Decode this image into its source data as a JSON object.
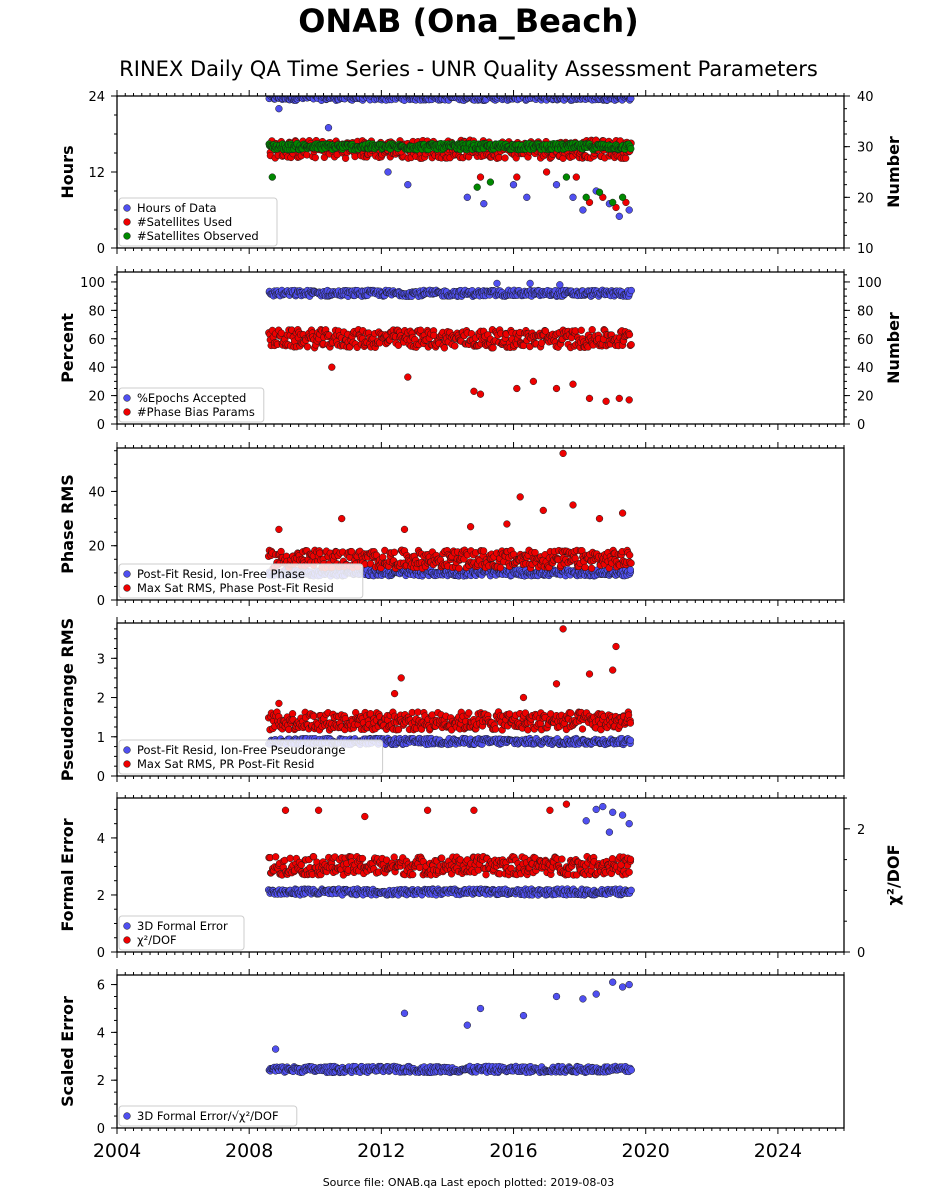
{
  "title": "ONAB (Ona_Beach)",
  "subtitle": "RINEX Daily QA Time Series - UNR Quality Assessment Parameters",
  "footer": "Source file: ONAB.qa Last epoch plotted: 2019-08-03",
  "colors": {
    "blue": "#5050f0",
    "red": "#ee0000",
    "green": "#008800",
    "edge": "#1a1a1a"
  },
  "x_axis": {
    "range": [
      2004,
      2026
    ],
    "ticks": [
      "2004",
      "2008",
      "2012",
      "2016",
      "2020",
      "2024"
    ],
    "tick_values": [
      2004,
      2008,
      2012,
      2016,
      2020,
      2024
    ]
  },
  "chart_data": [
    {
      "type": "scatter",
      "ylabel": "Hours",
      "y2label": "Number",
      "ylim": [
        0,
        24
      ],
      "yticks": [
        0,
        12,
        24
      ],
      "y2lim": [
        10,
        40
      ],
      "y2ticks": [
        10,
        20,
        30,
        40
      ],
      "legend_position": "lower-left",
      "series": [
        {
          "name": "Hours of Data",
          "axis": "left",
          "color": "blue",
          "baseline": 23.8,
          "low": 5,
          "points": [
            [
              2008.9,
              22
            ],
            [
              2010.4,
              19
            ],
            [
              2012.2,
              12
            ],
            [
              2012.8,
              10
            ],
            [
              2014.6,
              8
            ],
            [
              2015.1,
              7
            ],
            [
              2016.0,
              10
            ],
            [
              2016.4,
              8
            ],
            [
              2017.3,
              10
            ],
            [
              2017.8,
              8
            ],
            [
              2018.1,
              6
            ],
            [
              2018.5,
              9
            ],
            [
              2018.9,
              7
            ],
            [
              2019.2,
              5
            ],
            [
              2019.5,
              6
            ]
          ]
        },
        {
          "name": "#Satellites Used",
          "axis": "right",
          "color": "red",
          "baseline": 29.5,
          "low": 17,
          "points": [
            [
              2012.6,
              29
            ],
            [
              2015.0,
              24
            ],
            [
              2016.1,
              24
            ],
            [
              2017.0,
              25
            ],
            [
              2017.9,
              24
            ],
            [
              2018.3,
              19
            ],
            [
              2018.7,
              20
            ],
            [
              2019.1,
              18
            ],
            [
              2019.4,
              19
            ]
          ]
        },
        {
          "name": "#Satellites Observed",
          "axis": "right",
          "color": "green",
          "baseline": 30,
          "low": 19,
          "points": [
            [
              2008.7,
              24
            ],
            [
              2014.9,
              22
            ],
            [
              2015.3,
              23
            ],
            [
              2017.6,
              24
            ],
            [
              2018.2,
              20
            ],
            [
              2018.6,
              21
            ],
            [
              2019.0,
              19
            ],
            [
              2019.3,
              20
            ]
          ]
        }
      ]
    },
    {
      "type": "scatter",
      "ylabel": "Percent",
      "y2label": "Number",
      "ylim": [
        0,
        107
      ],
      "yticks": [
        0,
        20,
        40,
        60,
        80,
        100
      ],
      "y2lim": [
        0,
        107
      ],
      "y2ticks": [
        0,
        20,
        40,
        60,
        80,
        100
      ],
      "legend_position": "lower-left",
      "series": [
        {
          "name": "%Epochs Accepted",
          "axis": "left",
          "color": "blue",
          "baseline": 92,
          "low": 87,
          "points": [
            [
              2015.5,
              99
            ],
            [
              2016.5,
              99
            ],
            [
              2017.4,
              98
            ]
          ]
        },
        {
          "name": "#Phase Bias Params",
          "axis": "right",
          "color": "red",
          "baseline": 60,
          "low": 16,
          "points": [
            [
              2010.5,
              40
            ],
            [
              2012.8,
              33
            ],
            [
              2014.8,
              23
            ],
            [
              2015.0,
              21
            ],
            [
              2016.1,
              25
            ],
            [
              2016.6,
              30
            ],
            [
              2017.3,
              25
            ],
            [
              2017.8,
              28
            ],
            [
              2018.3,
              18
            ],
            [
              2018.8,
              16
            ],
            [
              2019.2,
              18
            ],
            [
              2019.5,
              17
            ]
          ]
        }
      ]
    },
    {
      "type": "scatter",
      "ylabel": "Phase RMS",
      "ylim": [
        0,
        56
      ],
      "yticks": [
        0,
        20,
        40
      ],
      "legend_position": "lower-left",
      "series": [
        {
          "name": "Post-Fit Resid, Ion-Free Phase",
          "axis": "left",
          "color": "blue",
          "baseline": 10,
          "low": 8,
          "points": []
        },
        {
          "name": "Max Sat RMS, Phase Post-Fit Resid",
          "axis": "left",
          "color": "red",
          "baseline": 15,
          "low": 10,
          "points": [
            [
              2008.9,
              26
            ],
            [
              2010.8,
              30
            ],
            [
              2012.7,
              26
            ],
            [
              2014.7,
              27
            ],
            [
              2015.8,
              28
            ],
            [
              2016.2,
              38
            ],
            [
              2016.9,
              33
            ],
            [
              2017.5,
              54
            ],
            [
              2017.8,
              35
            ],
            [
              2018.6,
              30
            ],
            [
              2019.3,
              32
            ]
          ]
        }
      ]
    },
    {
      "type": "scatter",
      "ylabel": "Pseudorange RMS",
      "ylim": [
        0,
        3.9
      ],
      "yticks": [
        0,
        1,
        2,
        3
      ],
      "legend_position": "lower-left",
      "series": [
        {
          "name": "Post-Fit Resid, Ion-Free Pseudorange",
          "axis": "left",
          "color": "blue",
          "baseline": 0.88,
          "low": 0.55,
          "points": []
        },
        {
          "name": "Max Sat RMS, PR Post-Fit Resid",
          "axis": "left",
          "color": "red",
          "baseline": 1.4,
          "low": 0.7,
          "points": [
            [
              2008.9,
              1.85
            ],
            [
              2012.4,
              2.1
            ],
            [
              2012.6,
              2.5
            ],
            [
              2016.3,
              2.0
            ],
            [
              2017.5,
              3.75
            ],
            [
              2017.3,
              2.35
            ],
            [
              2018.3,
              2.6
            ],
            [
              2019.1,
              3.3
            ],
            [
              2019.0,
              2.7
            ]
          ]
        }
      ]
    },
    {
      "type": "scatter",
      "ylabel": "Formal Error",
      "y2label": "χ²/DOF",
      "ylim": [
        0,
        5.4
      ],
      "yticks": [
        0,
        2,
        4
      ],
      "y2lim": [
        0,
        2.5
      ],
      "y2ticks": [
        0,
        2
      ],
      "legend_position": "lower-left",
      "series": [
        {
          "name": "3D Formal Error",
          "axis": "left",
          "color": "blue",
          "baseline": 2.1,
          "low": 2.0,
          "points": [
            [
              2018.2,
              4.6
            ],
            [
              2018.5,
              5.0
            ],
            [
              2018.7,
              5.1
            ],
            [
              2019.0,
              4.9
            ],
            [
              2019.3,
              4.8
            ],
            [
              2019.5,
              4.5
            ],
            [
              2018.9,
              4.2
            ]
          ]
        },
        {
          "name": "χ²/DOF",
          "axis": "right",
          "color": "red",
          "baseline": 1.4,
          "low": 1.2,
          "points": [
            [
              2009.1,
              2.3
            ],
            [
              2010.1,
              2.3
            ],
            [
              2011.5,
              2.2
            ],
            [
              2013.4,
              2.3
            ],
            [
              2014.8,
              2.3
            ],
            [
              2017.1,
              2.3
            ],
            [
              2017.6,
              2.4
            ]
          ]
        }
      ]
    },
    {
      "type": "scatter",
      "ylabel": "Scaled Error",
      "ylim": [
        0,
        6.4
      ],
      "yticks": [
        0,
        2,
        4,
        6
      ],
      "legend_position": "lower-left",
      "series": [
        {
          "name": "3D Formal Error/√χ²/DOF",
          "axis": "left",
          "color": "blue",
          "baseline": 2.45,
          "low": 2.1,
          "points": [
            [
              2008.8,
              3.3
            ],
            [
              2012.7,
              4.8
            ],
            [
              2014.6,
              4.3
            ],
            [
              2015.0,
              5.0
            ],
            [
              2016.3,
              4.7
            ],
            [
              2017.3,
              5.5
            ],
            [
              2018.1,
              5.4
            ],
            [
              2018.5,
              5.6
            ],
            [
              2019.0,
              6.1
            ],
            [
              2019.3,
              5.9
            ],
            [
              2019.5,
              6.0
            ]
          ]
        }
      ]
    }
  ]
}
